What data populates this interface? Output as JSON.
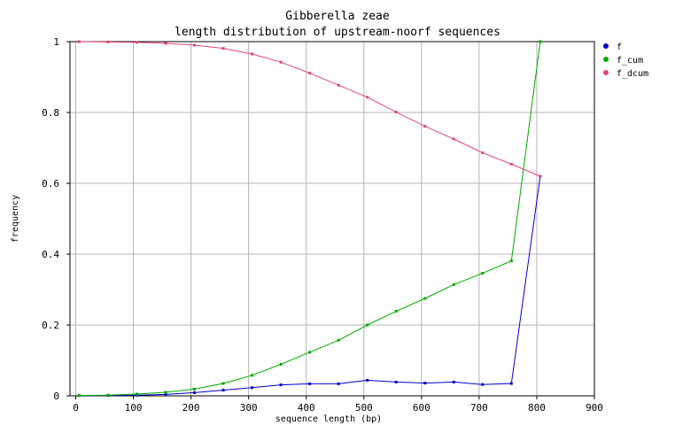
{
  "chart_data": {
    "type": "line",
    "title": "Gibberella zeae",
    "subtitle": "length distribution of upstream-noorf sequences",
    "xlabel": "sequence length (bp)",
    "ylabel": "frequency",
    "xlim": [
      -10,
      900
    ],
    "ylim": [
      0,
      1
    ],
    "xticks": [
      0,
      100,
      200,
      300,
      400,
      500,
      600,
      700,
      800,
      900
    ],
    "yticks": [
      0,
      0.2,
      0.4,
      0.6,
      0.8,
      1
    ],
    "grid": true,
    "legend_position": "top-right",
    "x": [
      6,
      56,
      106,
      156,
      206,
      256,
      306,
      356,
      406,
      456,
      506,
      556,
      606,
      656,
      706,
      756,
      806
    ],
    "series": [
      {
        "name": "f",
        "color": "#0000cc",
        "values": [
          0.001,
          0.001,
          0.002,
          0.004,
          0.009,
          0.016,
          0.023,
          0.031,
          0.034,
          0.034,
          0.044,
          0.039,
          0.036,
          0.039,
          0.032,
          0.035,
          0.62
        ]
      },
      {
        "name": "f_cum",
        "color": "#00aa00",
        "values": [
          0.001,
          0.002,
          0.005,
          0.01,
          0.019,
          0.035,
          0.058,
          0.089,
          0.123,
          0.157,
          0.2,
          0.239,
          0.275,
          0.314,
          0.346,
          0.381,
          1.0
        ]
      },
      {
        "name": "f_dcum",
        "color": "#e0486e",
        "values": [
          1.0,
          0.999,
          0.998,
          0.995,
          0.99,
          0.981,
          0.965,
          0.942,
          0.911,
          0.877,
          0.843,
          0.801,
          0.761,
          0.725,
          0.686,
          0.654,
          0.62
        ]
      }
    ]
  }
}
